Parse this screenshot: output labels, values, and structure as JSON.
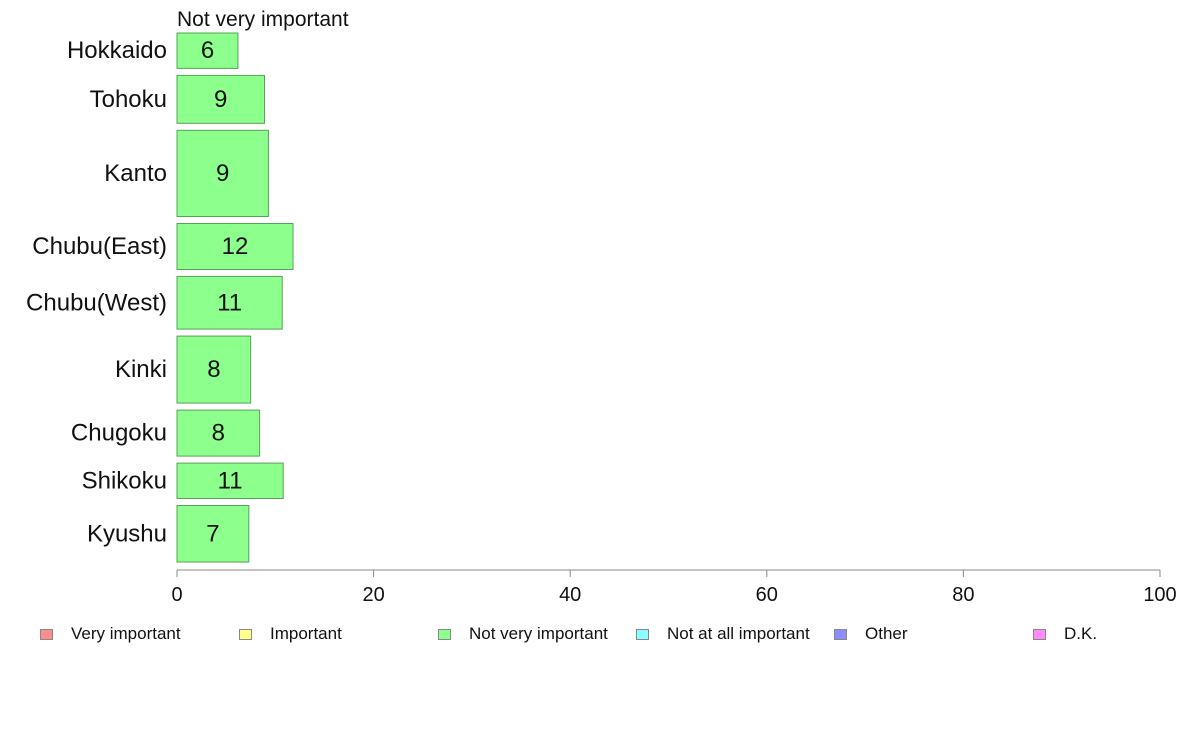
{
  "chart_data": {
    "type": "bar",
    "orientation": "horizontal",
    "title": "Not very important",
    "categories": [
      "Hokkaido",
      "Tohoku",
      "Kanto",
      "Chubu(East)",
      "Chubu(West)",
      "Kinki",
      "Chugoku",
      "Shikoku",
      "Kyushu"
    ],
    "values": [
      6.2,
      8.9,
      9.3,
      11.8,
      10.7,
      7.5,
      8.4,
      10.8,
      7.3
    ],
    "data_labels": [
      "6",
      "9",
      "9",
      "12",
      "11",
      "8",
      "8",
      "11",
      "7"
    ],
    "bar_weights": [
      0.37,
      0.5,
      0.9,
      0.48,
      0.55,
      0.7,
      0.48,
      0.37,
      0.59
    ],
    "xlim": [
      0,
      100
    ],
    "xticks": [
      0,
      20,
      40,
      60,
      80,
      100
    ],
    "xlabel": "",
    "ylabel": "",
    "grid": false,
    "bar_color": "#8cff8c",
    "bar_border_color": "#5aa05a",
    "legend_position": "bottom",
    "legend": [
      {
        "label": "Very important",
        "color": "#ff8c8c"
      },
      {
        "label": "Important",
        "color": "#ffff8c"
      },
      {
        "label": "Not very important",
        "color": "#8cff8c"
      },
      {
        "label": "Not at all important",
        "color": "#8cffff"
      },
      {
        "label": "Other",
        "color": "#8c8cff"
      },
      {
        "label": "D.K.",
        "color": "#ff8cff"
      }
    ]
  }
}
